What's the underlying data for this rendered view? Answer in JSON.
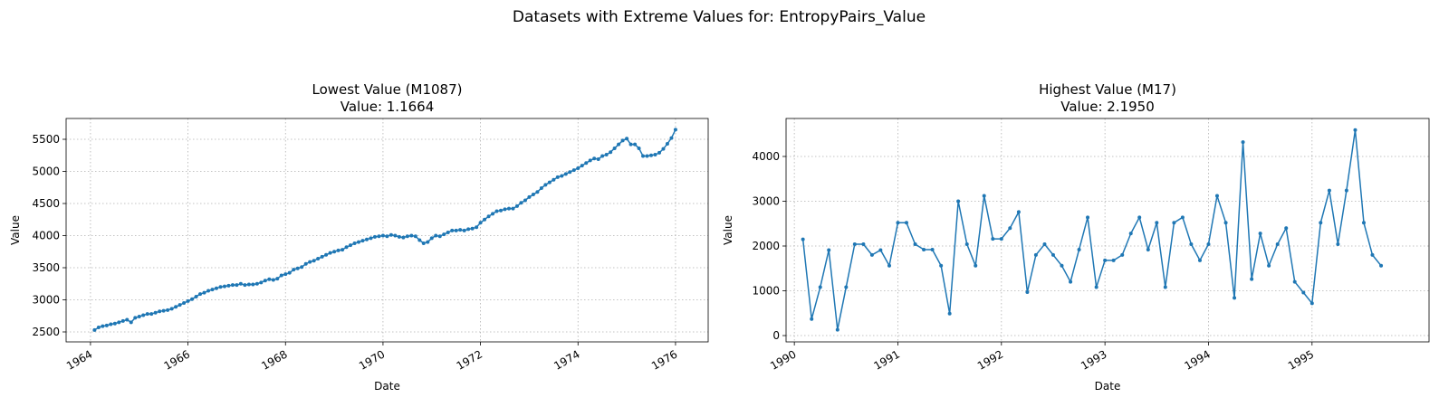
{
  "title": "Datasets with Extreme Values for: EntropyPairs_Value",
  "chart_data": [
    {
      "type": "line",
      "title": "Lowest Value (M1087)",
      "subtitle": "Value: 1.1664",
      "xlabel": "Date",
      "ylabel": "Value",
      "grid": true,
      "color": "#1f77b4",
      "xlim": [
        1963.5,
        1976.67
      ],
      "xticks": [
        1964,
        1966,
        1968,
        1970,
        1972,
        1974,
        1976
      ],
      "ylim": [
        2345,
        5824
      ],
      "yticks": [
        2500,
        3000,
        3500,
        4000,
        4500,
        5000,
        5500
      ],
      "x": [
        1964.083,
        1964.167,
        1964.25,
        1964.333,
        1964.417,
        1964.5,
        1964.583,
        1964.667,
        1964.75,
        1964.833,
        1964.917,
        1965,
        1965.083,
        1965.167,
        1965.25,
        1965.333,
        1965.417,
        1965.5,
        1965.583,
        1965.667,
        1965.75,
        1965.833,
        1965.917,
        1966,
        1966.083,
        1966.167,
        1966.25,
        1966.333,
        1966.417,
        1966.5,
        1966.583,
        1966.667,
        1966.75,
        1966.833,
        1966.917,
        1967,
        1967.083,
        1967.167,
        1967.25,
        1967.333,
        1967.417,
        1967.5,
        1967.583,
        1967.667,
        1967.75,
        1967.833,
        1967.917,
        1968,
        1968.083,
        1968.167,
        1968.25,
        1968.333,
        1968.417,
        1968.5,
        1968.583,
        1968.667,
        1968.75,
        1968.833,
        1968.917,
        1969,
        1969.083,
        1969.167,
        1969.25,
        1969.333,
        1969.417,
        1969.5,
        1969.583,
        1969.667,
        1969.75,
        1969.833,
        1969.917,
        1970,
        1970.083,
        1970.167,
        1970.25,
        1970.333,
        1970.417,
        1970.5,
        1970.583,
        1970.667,
        1970.75,
        1970.833,
        1970.917,
        1971,
        1971.083,
        1971.167,
        1971.25,
        1971.333,
        1971.417,
        1971.5,
        1971.583,
        1971.667,
        1971.75,
        1971.833,
        1971.917,
        1972,
        1972.083,
        1972.167,
        1972.25,
        1972.333,
        1972.417,
        1972.5,
        1972.583,
        1972.667,
        1972.75,
        1972.833,
        1972.917,
        1973,
        1973.083,
        1973.167,
        1973.25,
        1973.333,
        1973.417,
        1973.5,
        1973.583,
        1973.667,
        1973.75,
        1973.833,
        1973.917,
        1974,
        1974.083,
        1974.167,
        1974.25,
        1974.333,
        1974.417,
        1974.5,
        1974.583,
        1974.667,
        1974.75,
        1974.833,
        1974.917,
        1975,
        1975.083,
        1975.167,
        1975.25,
        1975.333,
        1975.417,
        1975.5,
        1975.583,
        1975.667,
        1975.75,
        1975.833,
        1975.917,
        1976
      ],
      "values": [
        2530,
        2570,
        2590,
        2600,
        2620,
        2630,
        2650,
        2670,
        2690,
        2650,
        2720,
        2740,
        2760,
        2780,
        2780,
        2800,
        2820,
        2830,
        2840,
        2860,
        2890,
        2920,
        2950,
        2980,
        3010,
        3050,
        3090,
        3110,
        3140,
        3160,
        3180,
        3200,
        3210,
        3220,
        3230,
        3230,
        3250,
        3230,
        3240,
        3240,
        3250,
        3270,
        3300,
        3320,
        3310,
        3330,
        3380,
        3400,
        3420,
        3470,
        3490,
        3510,
        3560,
        3590,
        3610,
        3640,
        3670,
        3700,
        3730,
        3750,
        3770,
        3780,
        3820,
        3850,
        3880,
        3900,
        3920,
        3940,
        3960,
        3980,
        3990,
        4000,
        3990,
        4010,
        4000,
        3980,
        3970,
        3990,
        4000,
        3990,
        3930,
        3880,
        3900,
        3960,
        4000,
        3990,
        4020,
        4050,
        4080,
        4080,
        4090,
        4080,
        4100,
        4110,
        4130,
        4200,
        4250,
        4300,
        4340,
        4380,
        4390,
        4410,
        4420,
        4420,
        4460,
        4510,
        4550,
        4600,
        4640,
        4680,
        4740,
        4790,
        4830,
        4870,
        4910,
        4930,
        4960,
        4990,
        5020,
        5050,
        5090,
        5130,
        5170,
        5200,
        5190,
        5240,
        5260,
        5300,
        5360,
        5420,
        5480,
        5510,
        5420,
        5420,
        5360,
        5240,
        5240,
        5250,
        5260,
        5290,
        5350,
        5430,
        5520,
        5650
      ]
    },
    {
      "type": "line",
      "title": "Highest Value (M17)",
      "subtitle": "Value: 2.1950",
      "xlabel": "Date",
      "ylabel": "Value",
      "grid": true,
      "color": "#1f77b4",
      "xlim": [
        1989.92,
        1996.13
      ],
      "xticks": [
        1990,
        1991,
        1992,
        1993,
        1994,
        1995
      ],
      "ylim": [
        -141,
        4848
      ],
      "yticks": [
        0,
        1000,
        2000,
        3000,
        4000
      ],
      "x": [
        1990.083,
        1990.167,
        1990.25,
        1990.333,
        1990.417,
        1990.5,
        1990.583,
        1990.667,
        1990.75,
        1990.833,
        1990.917,
        1991,
        1991.083,
        1991.167,
        1991.25,
        1991.333,
        1991.417,
        1991.5,
        1991.583,
        1991.667,
        1991.75,
        1991.833,
        1991.917,
        1992,
        1992.083,
        1992.167,
        1992.25,
        1992.333,
        1992.417,
        1992.5,
        1992.583,
        1992.667,
        1992.75,
        1992.833,
        1992.917,
        1993,
        1993.083,
        1993.167,
        1993.25,
        1993.333,
        1993.417,
        1993.5,
        1993.583,
        1993.667,
        1993.75,
        1993.833,
        1993.917,
        1994,
        1994.083,
        1994.167,
        1994.25,
        1994.333,
        1994.417,
        1994.5,
        1994.583,
        1994.667,
        1994.75,
        1994.833,
        1994.917,
        1995,
        1995.083,
        1995.167,
        1995.25,
        1995.333,
        1995.417,
        1995.5,
        1995.583,
        1995.667
      ],
      "values": [
        2150,
        370,
        1080,
        1910,
        130,
        1080,
        2040,
        2040,
        1800,
        1910,
        1560,
        2520,
        2520,
        2040,
        1920,
        1920,
        1560,
        490,
        3000,
        2040,
        1560,
        3120,
        2160,
        2160,
        2400,
        2760,
        970,
        1800,
        2040,
        1800,
        1560,
        1200,
        1920,
        2640,
        1080,
        1680,
        1680,
        1800,
        2280,
        2640,
        1920,
        2520,
        1080,
        2520,
        2640,
        2040,
        1680,
        2040,
        3120,
        2520,
        840,
        4320,
        1260,
        2280,
        1560,
        2040,
        2400,
        1200,
        960,
        720,
        2520,
        3240,
        2040,
        3240,
        4590,
        2520,
        1800,
        1560
      ]
    }
  ]
}
